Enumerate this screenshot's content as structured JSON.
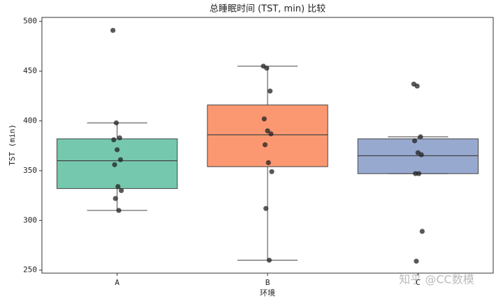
{
  "chart_data": {
    "type": "box",
    "title": "总睡眠时间 (TST, min) 比较",
    "x_label": "环境",
    "y_label": "TST (min)",
    "watermark": "知乎 @CC数模",
    "categories": [
      "A",
      "B",
      "C"
    ],
    "colors": [
      "#66c2a5",
      "#fc8d62",
      "#8da0cb"
    ],
    "boxes": [
      {
        "whislo": 310,
        "q1": 332,
        "med": 360,
        "q3": 382,
        "whishi": 398
      },
      {
        "whislo": 260,
        "q1": 354,
        "med": 386,
        "q3": 416,
        "whishi": 455
      },
      {
        "whislo": 347,
        "q1": 347,
        "med": 365,
        "q3": 382,
        "whishi": 384
      }
    ],
    "points": [
      [
        491,
        398,
        383,
        381,
        371,
        361,
        356,
        334,
        330,
        322,
        310
      ],
      [
        455,
        453,
        430,
        402,
        390,
        387,
        376,
        358,
        349,
        312,
        260
      ],
      [
        437,
        435,
        384,
        380,
        368,
        366,
        347,
        347,
        289,
        259
      ]
    ],
    "ylim": [
      247,
      504
    ],
    "yticks": [
      250,
      300,
      350,
      400,
      450,
      500
    ]
  }
}
